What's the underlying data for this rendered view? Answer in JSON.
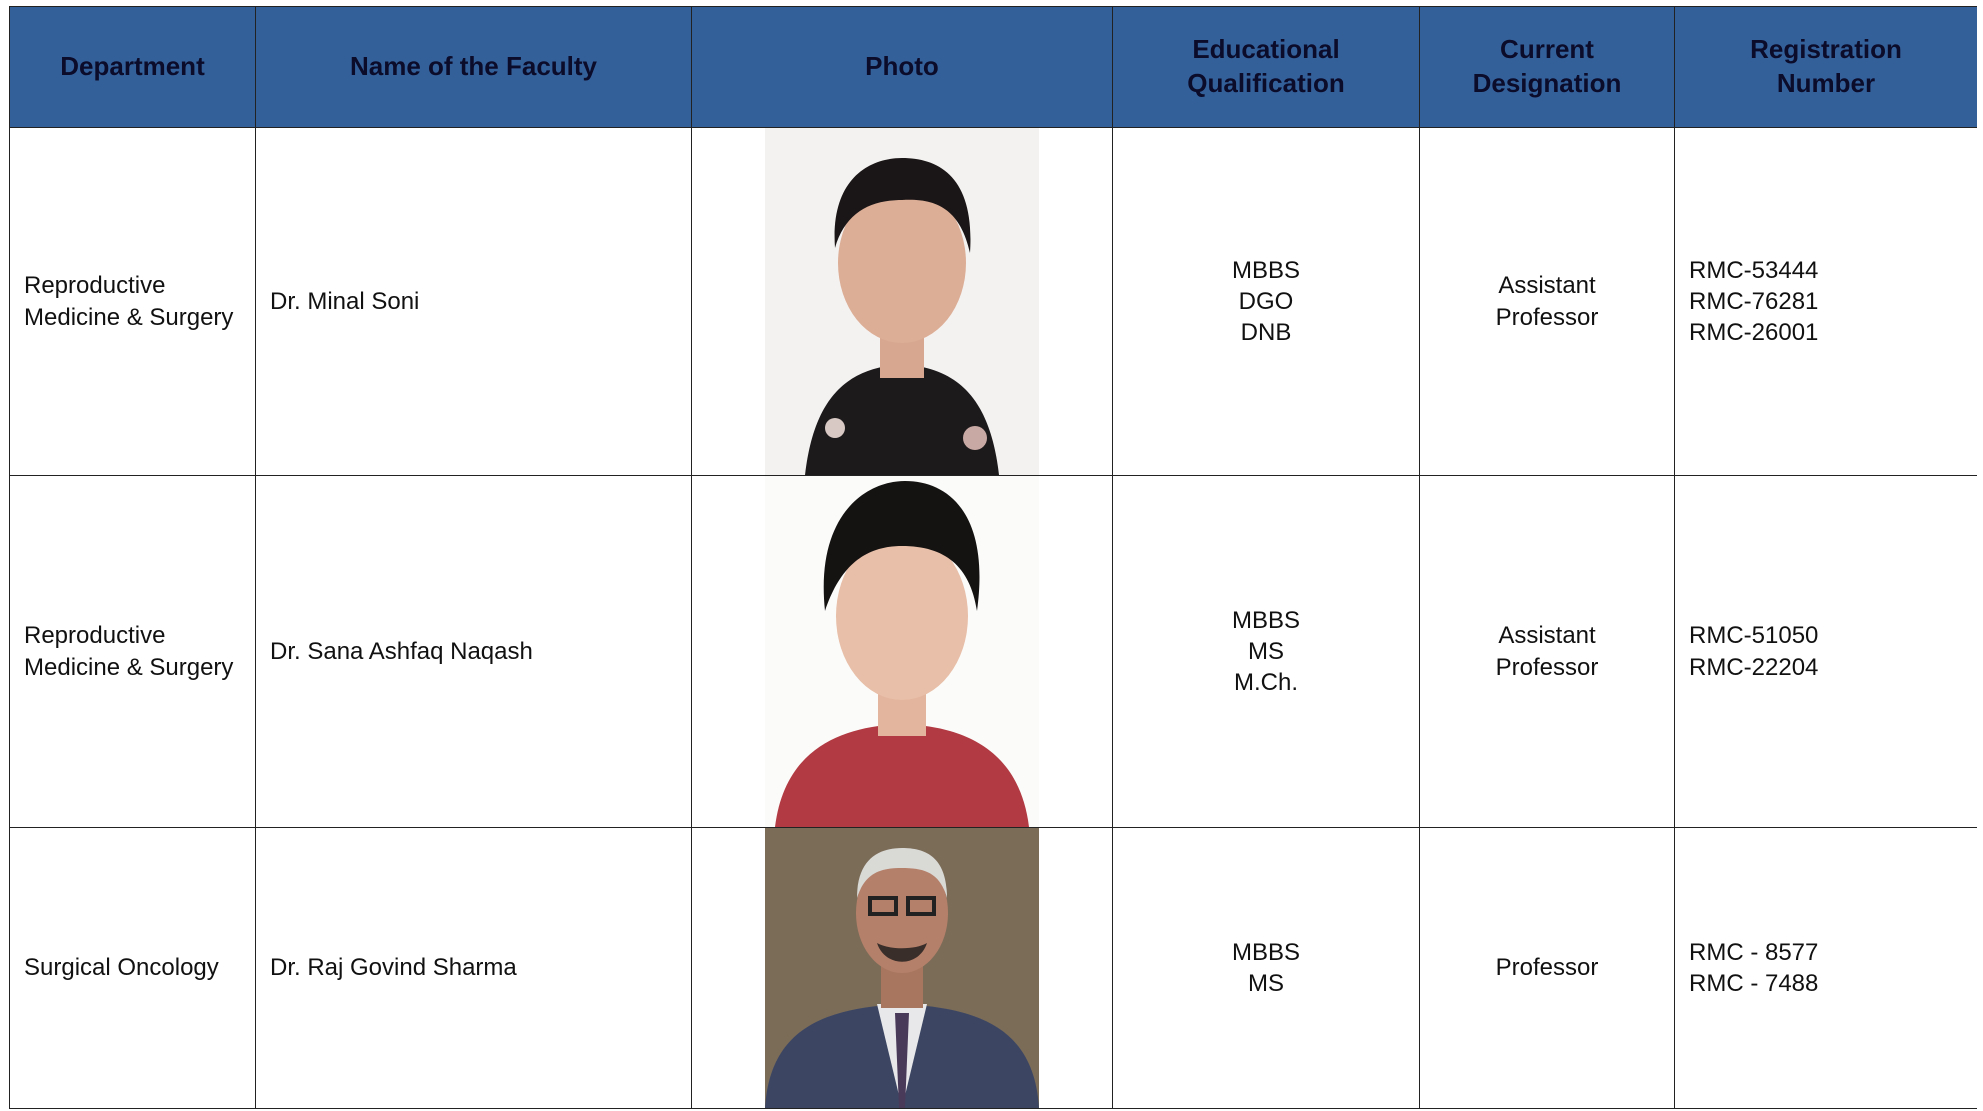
{
  "table": {
    "header": [
      "Department",
      "Name of the Faculty",
      "Photo",
      "Educational Qualification",
      "Current Designation",
      "Registration Number"
    ],
    "rows": [
      {
        "department": "Reproductive Medicine & Surgery",
        "name": "Dr. Minal Soni",
        "qualification": [
          "MBBS",
          "DGO",
          "DNB"
        ],
        "designation": "Assistant Professor",
        "registration": [
          "RMC-53444",
          "RMC-76281",
          "RMC-26001"
        ]
      },
      {
        "department": "Reproductive Medicine & Surgery",
        "name": "Dr. Sana Ashfaq Naqash",
        "qualification": [
          "MBBS",
          "MS",
          "M.Ch."
        ],
        "designation": "Assistant Professor",
        "registration": [
          "RMC-51050",
          "RMC-22204"
        ]
      },
      {
        "department": "Surgical Oncology",
        "name": "Dr. Raj Govind Sharma",
        "qualification": [
          "MBBS",
          "MS"
        ],
        "designation": "Professor",
        "registration": [
          "RMC - 8577",
          "RMC - 7488"
        ]
      }
    ]
  }
}
